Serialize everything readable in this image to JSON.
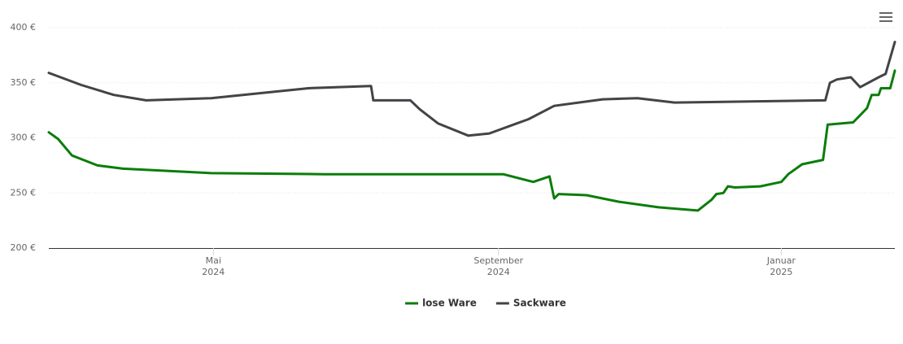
{
  "chart_data": {
    "type": "line",
    "xlim": [
      "2024-02-20",
      "2025-02-19"
    ],
    "xticks": [
      {
        "value": "2024-05-01",
        "label": "Mai\n2024"
      },
      {
        "value": "2024-09-01",
        "label": "September\n2024"
      },
      {
        "value": "2025-01-01",
        "label": "Januar\n2025"
      }
    ],
    "ylim": [
      200,
      400
    ],
    "yticks": [
      {
        "value": 200,
        "label": "200 €"
      },
      {
        "value": 250,
        "label": "250 €"
      },
      {
        "value": 300,
        "label": "300 €"
      },
      {
        "value": 350,
        "label": "350 €"
      },
      {
        "value": 400,
        "label": "400 €"
      }
    ],
    "grid": true,
    "legend": "bottom",
    "series": [
      {
        "name": "lose Ware",
        "color": "#0b7d0b",
        "x": [
          "2024-02-20",
          "2024-02-24",
          "2024-03-01",
          "2024-03-12",
          "2024-03-23",
          "2024-04-30",
          "2024-06-18",
          "2024-09-03",
          "2024-09-16",
          "2024-09-23",
          "2024-09-25",
          "2024-09-27",
          "2024-10-09",
          "2024-10-23",
          "2024-11-09",
          "2024-11-26",
          "2024-12-02",
          "2024-12-04",
          "2024-12-07",
          "2024-12-09",
          "2024-12-12",
          "2024-12-23",
          "2025-01-01",
          "2025-01-04",
          "2025-01-10",
          "2025-01-19",
          "2025-01-21",
          "2025-02-01",
          "2025-02-07",
          "2025-02-09",
          "2025-02-12",
          "2025-02-13",
          "2025-02-17",
          "2025-02-19"
        ],
        "values": [
          305,
          299,
          284,
          275,
          272,
          268,
          267,
          267,
          260,
          265,
          245,
          249,
          248,
          242,
          237,
          234,
          244,
          249,
          250,
          256,
          255,
          256,
          260,
          267,
          276,
          280,
          312,
          314,
          327,
          339,
          339,
          345,
          345,
          361
        ]
      },
      {
        "name": "Sackware",
        "color": "#434348",
        "x": [
          "2024-02-20",
          "2024-03-05",
          "2024-03-19",
          "2024-04-02",
          "2024-04-30",
          "2024-06-11",
          "2024-07-08",
          "2024-07-09",
          "2024-07-25",
          "2024-07-29",
          "2024-08-06",
          "2024-08-19",
          "2024-08-28",
          "2024-09-14",
          "2024-09-25",
          "2024-10-16",
          "2024-10-31",
          "2024-11-16",
          "2025-01-20",
          "2025-01-22",
          "2025-01-25",
          "2025-01-31",
          "2025-02-04",
          "2025-02-12",
          "2025-02-15",
          "2025-02-19"
        ],
        "values": [
          359,
          348,
          339,
          334,
          336,
          345,
          347,
          334,
          334,
          326,
          313,
          302,
          304,
          317,
          329,
          335,
          336,
          332,
          334,
          350,
          353,
          355,
          346,
          355,
          358,
          387
        ]
      }
    ]
  }
}
